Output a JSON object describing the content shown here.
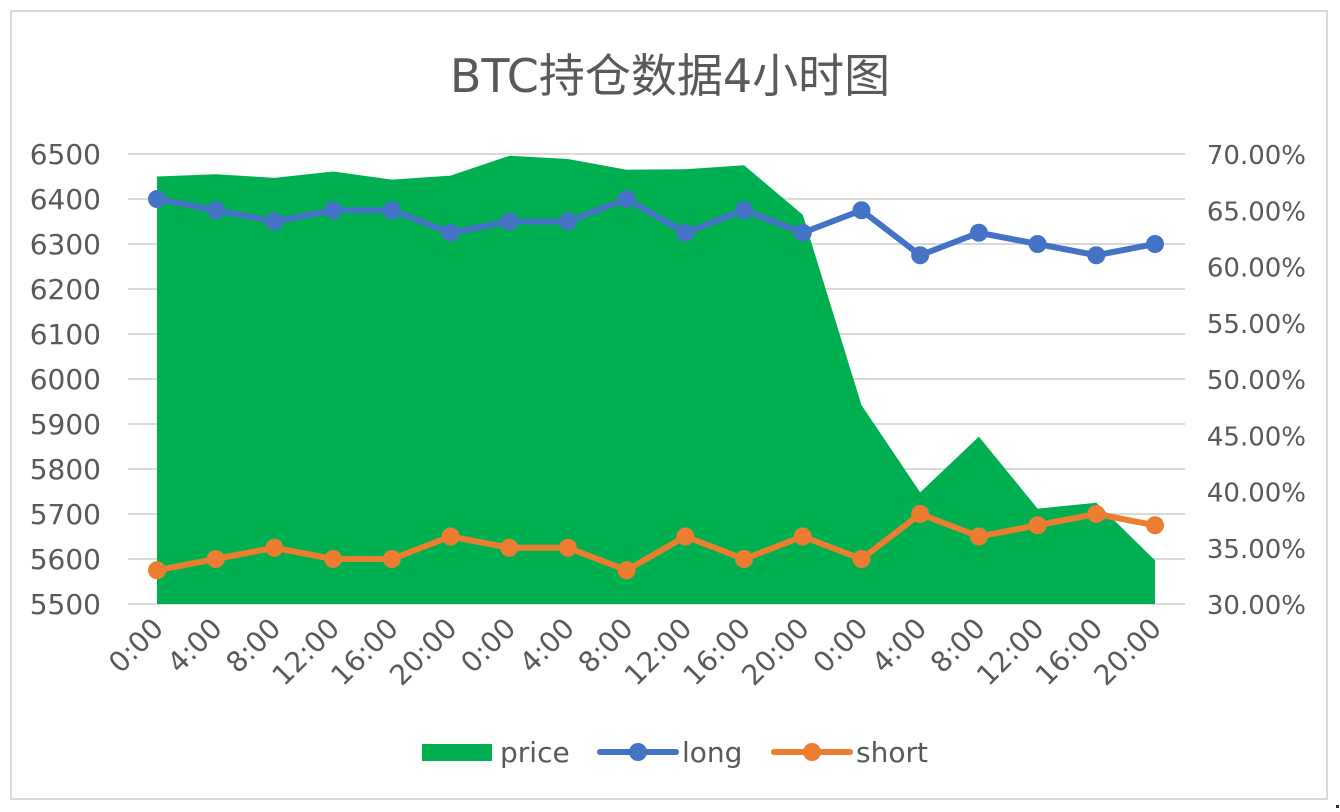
{
  "chart_data": {
    "type": "area+line",
    "title": "BTC持仓数据4小时图",
    "categories": [
      "0:00",
      "4:00",
      "8:00",
      "12:00",
      "16:00",
      "20:00",
      "0:00",
      "4:00",
      "8:00",
      "12:00",
      "16:00",
      "20:00",
      "0:00",
      "4:00",
      "8:00",
      "12:00",
      "16:00",
      "20:00"
    ],
    "y_left": {
      "min": 5500,
      "max": 6500,
      "step": 100,
      "ticks": [
        "6500",
        "6400",
        "6300",
        "6200",
        "6100",
        "6000",
        "5900",
        "5800",
        "5700",
        "5600",
        "5500"
      ]
    },
    "y_right": {
      "min": 30,
      "max": 70,
      "step": 5,
      "ticks": [
        "70.00%",
        "65.00%",
        "60.00%",
        "55.00%",
        "50.00%",
        "45.00%",
        "40.00%",
        "35.00%",
        "30.00%"
      ]
    },
    "series": [
      {
        "name": "price",
        "kind": "area",
        "axis": "left",
        "color": "#00b050",
        "values": [
          6450,
          6455,
          6447,
          6461,
          6443,
          6452,
          6496,
          6489,
          6465,
          6466,
          6475,
          6365,
          5942,
          5748,
          5872,
          5712,
          5725,
          5597
        ]
      },
      {
        "name": "long",
        "kind": "line",
        "axis": "right",
        "color": "#4472c4",
        "values": [
          66,
          65,
          64,
          65,
          65,
          63,
          64,
          64,
          66,
          63,
          65,
          63,
          65,
          61,
          63,
          62,
          61,
          62
        ]
      },
      {
        "name": "short",
        "kind": "line",
        "axis": "right",
        "color": "#ed7d31",
        "values": [
          33,
          34,
          35,
          34,
          34,
          36,
          35,
          35,
          33,
          36,
          34,
          36,
          34,
          38,
          36,
          37,
          38,
          37
        ]
      }
    ],
    "grid": true,
    "legend": "bottom"
  }
}
